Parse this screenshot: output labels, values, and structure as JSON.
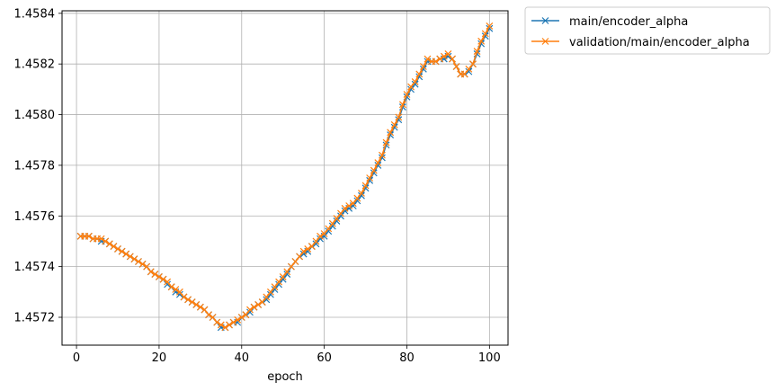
{
  "chart_data": {
    "type": "line",
    "title": "",
    "xlabel": "epoch",
    "ylabel": "",
    "xlim": [
      -3.5,
      104.5
    ],
    "ylim": [
      1.45709,
      1.45841
    ],
    "grid": true,
    "legend_placement": "outside-top-right",
    "x_ticks": [
      0,
      20,
      40,
      60,
      80,
      100
    ],
    "x_tick_labels": [
      "0",
      "20",
      "40",
      "60",
      "80",
      "100"
    ],
    "y_ticks": [
      1.4572,
      1.4574,
      1.4576,
      1.4578,
      1.458,
      1.4582,
      1.4584
    ],
    "y_tick_labels": [
      "1.4572",
      "1.4574",
      "1.4576",
      "1.4578",
      "1.4580",
      "1.4582",
      "1.4584"
    ],
    "x": [
      1,
      2,
      3,
      4,
      5,
      6,
      7,
      8,
      9,
      10,
      11,
      12,
      13,
      14,
      15,
      16,
      17,
      18,
      19,
      20,
      21,
      22,
      23,
      24,
      25,
      26,
      27,
      28,
      29,
      30,
      31,
      32,
      33,
      34,
      35,
      36,
      37,
      38,
      39,
      40,
      41,
      42,
      43,
      44,
      45,
      46,
      47,
      48,
      49,
      50,
      51,
      52,
      53,
      54,
      55,
      56,
      57,
      58,
      59,
      60,
      61,
      62,
      63,
      64,
      65,
      66,
      67,
      68,
      69,
      70,
      71,
      72,
      73,
      74,
      75,
      76,
      77,
      78,
      79,
      80,
      81,
      82,
      83,
      84,
      85,
      86,
      87,
      88,
      89,
      90,
      91,
      92,
      93,
      94,
      95,
      96,
      97,
      98,
      99,
      100
    ],
    "series": [
      {
        "name": "main/encoder_alpha",
        "color": "#1f77b4",
        "marker": "x",
        "values": [
          1.45752,
          1.45752,
          1.45752,
          1.45751,
          1.45751,
          1.4575,
          1.4575,
          1.45749,
          1.45748,
          1.45747,
          1.45746,
          1.45745,
          1.45744,
          1.45743,
          1.45742,
          1.45741,
          1.4574,
          1.45738,
          1.45737,
          1.45736,
          1.45735,
          1.45733,
          1.45732,
          1.4573,
          1.45729,
          1.45728,
          1.45727,
          1.45726,
          1.45725,
          1.45724,
          1.45723,
          1.45721,
          1.4572,
          1.45718,
          1.45716,
          1.45716,
          1.45717,
          1.45718,
          1.45718,
          1.4572,
          1.45721,
          1.45722,
          1.45724,
          1.45725,
          1.45726,
          1.45727,
          1.45729,
          1.45731,
          1.45733,
          1.45735,
          1.45737,
          1.4574,
          1.45742,
          1.45744,
          1.45745,
          1.45746,
          1.45748,
          1.45749,
          1.45751,
          1.45752,
          1.45754,
          1.45756,
          1.45758,
          1.4576,
          1.45762,
          1.45763,
          1.45764,
          1.45766,
          1.45768,
          1.45771,
          1.45774,
          1.45777,
          1.4578,
          1.45783,
          1.45788,
          1.45792,
          1.45795,
          1.45798,
          1.45803,
          1.45807,
          1.4581,
          1.45812,
          1.45815,
          1.45818,
          1.45821,
          1.45821,
          1.45821,
          1.45822,
          1.45822,
          1.45823,
          1.45822,
          1.45819,
          1.45816,
          1.45816,
          1.45817,
          1.4582,
          1.45824,
          1.45828,
          1.45831,
          1.45834
        ]
      },
      {
        "name": "validation/main/encoder_alpha",
        "color": "#ff7f0e",
        "marker": "x",
        "values": [
          1.45752,
          1.45752,
          1.45752,
          1.45751,
          1.45751,
          1.45751,
          1.4575,
          1.45749,
          1.45748,
          1.45747,
          1.45746,
          1.45745,
          1.45744,
          1.45743,
          1.45742,
          1.45741,
          1.4574,
          1.45738,
          1.45737,
          1.45736,
          1.45735,
          1.45734,
          1.45732,
          1.45731,
          1.4573,
          1.45728,
          1.45727,
          1.45726,
          1.45725,
          1.45724,
          1.45723,
          1.45721,
          1.4572,
          1.45718,
          1.45717,
          1.45716,
          1.45717,
          1.45718,
          1.45719,
          1.4572,
          1.45721,
          1.45723,
          1.45724,
          1.45725,
          1.45726,
          1.45728,
          1.4573,
          1.45732,
          1.45734,
          1.45736,
          1.45738,
          1.4574,
          1.45742,
          1.45744,
          1.45746,
          1.45747,
          1.45748,
          1.4575,
          1.45752,
          1.45753,
          1.45755,
          1.45757,
          1.45759,
          1.45761,
          1.45763,
          1.45764,
          1.45765,
          1.45767,
          1.45769,
          1.45772,
          1.45775,
          1.45778,
          1.45781,
          1.45784,
          1.45789,
          1.45793,
          1.45796,
          1.45799,
          1.45804,
          1.45808,
          1.45811,
          1.45813,
          1.45816,
          1.45819,
          1.45822,
          1.45821,
          1.45821,
          1.45822,
          1.45823,
          1.45824,
          1.45822,
          1.45819,
          1.45816,
          1.45816,
          1.45818,
          1.4582,
          1.45825,
          1.45829,
          1.45832,
          1.45835
        ]
      }
    ]
  }
}
